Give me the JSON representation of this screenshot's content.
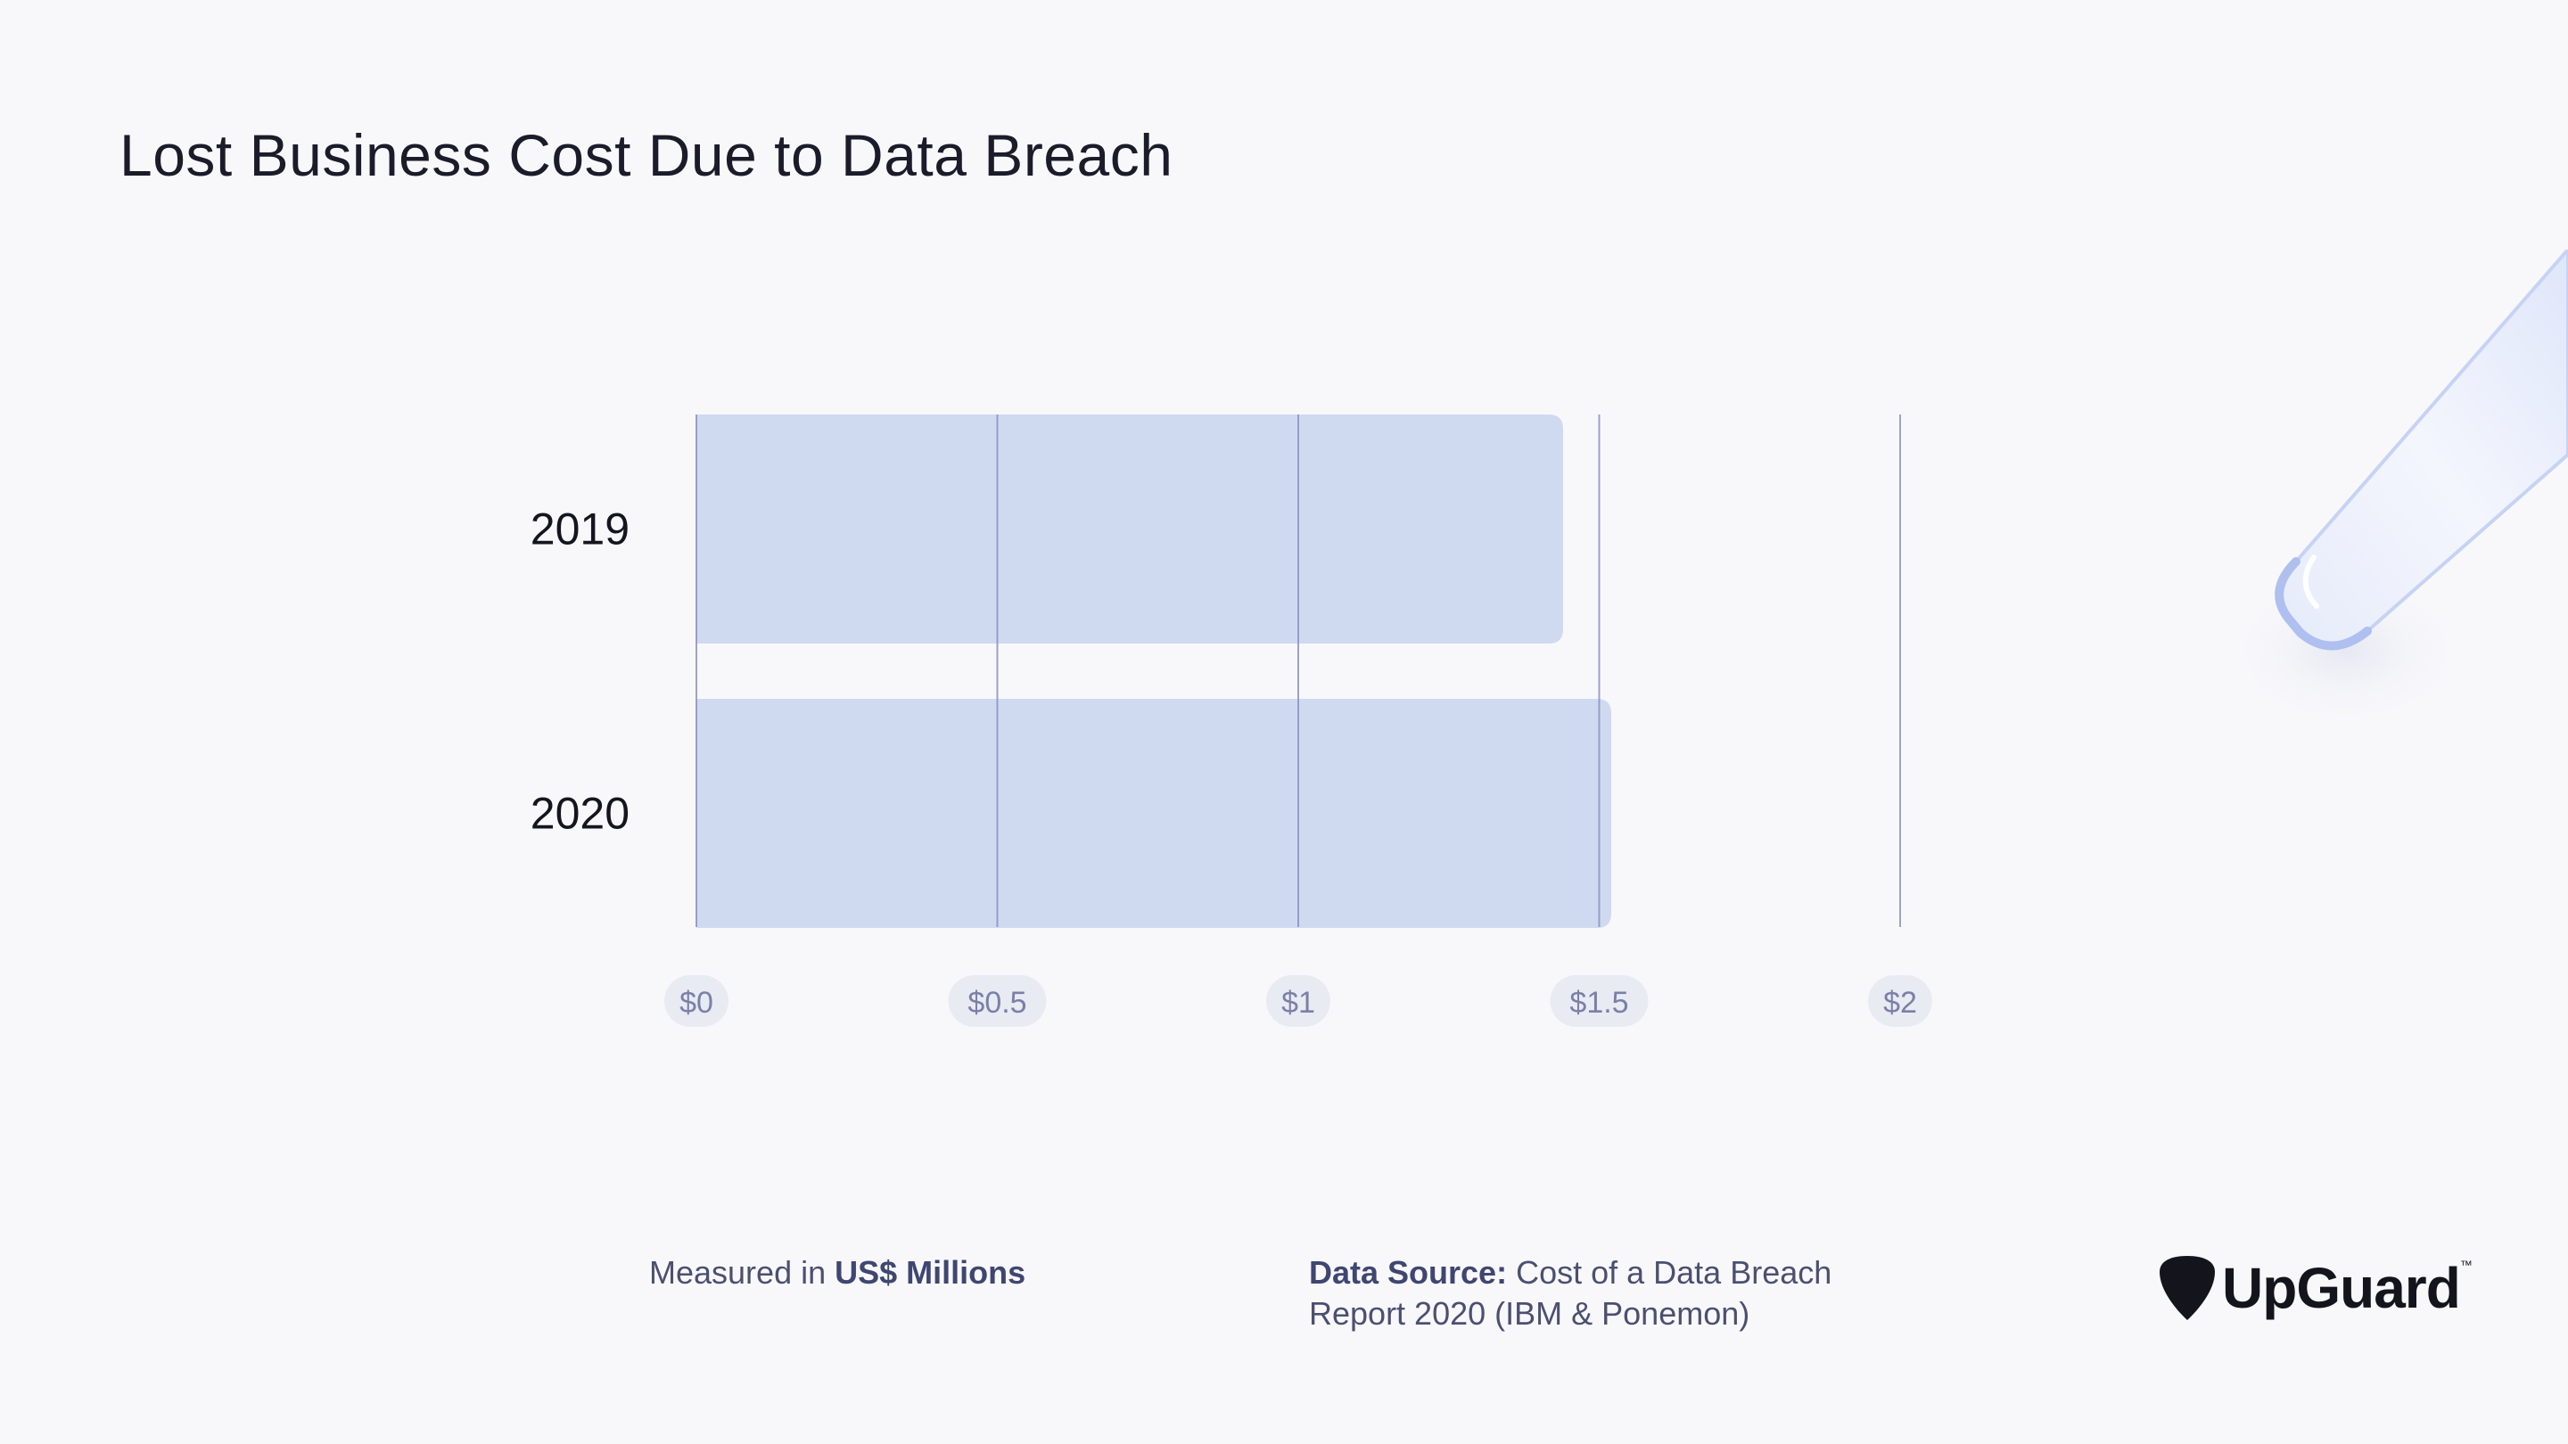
{
  "title": "Lost Business Cost Due to Data Breach",
  "chart_data": {
    "type": "bar",
    "orientation": "horizontal",
    "title": "Lost Business Cost Due to Data Breach",
    "categories": [
      "2019",
      "2020"
    ],
    "values": [
      1.44,
      1.52
    ],
    "xlim": [
      0,
      2
    ],
    "x_ticks": [
      "$0",
      "$0.5",
      "$1",
      "$1.5",
      "$2"
    ],
    "grid": true,
    "bar_color": "#cfdaf1",
    "grid_color": "#8c92c4"
  },
  "footer": {
    "measured_prefix": "Measured in ",
    "measured_unit": "US$ Millions",
    "source_label": "Data Source:",
    "source_line1": " Cost of a Data Breach",
    "source_line2": "Report 2020 (IBM & Ponemon)"
  },
  "brand": {
    "name": "UpGuard",
    "tm": "™",
    "icon": "shield-pick-icon"
  }
}
